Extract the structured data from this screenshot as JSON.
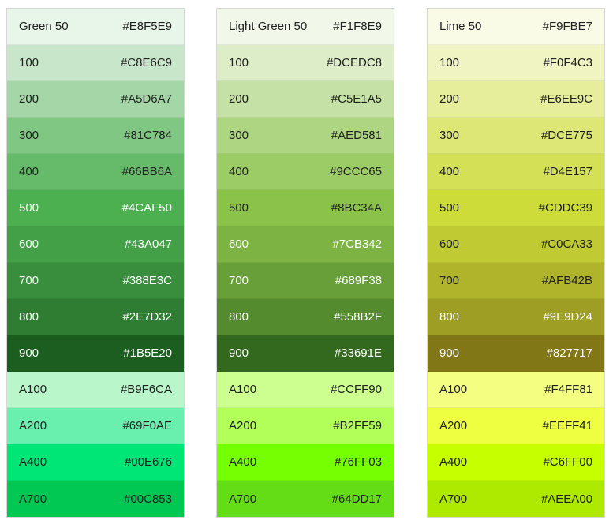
{
  "palettes": [
    {
      "header": "Green 50",
      "swatches": [
        {
          "shade": "Green 50",
          "hex": "#E8F5E9",
          "text": "#212121"
        },
        {
          "shade": "100",
          "hex": "#C8E6C9",
          "text": "#212121"
        },
        {
          "shade": "200",
          "hex": "#A5D6A7",
          "text": "#212121"
        },
        {
          "shade": "300",
          "hex": "#81C784",
          "text": "#212121"
        },
        {
          "shade": "400",
          "hex": "#66BB6A",
          "text": "#212121"
        },
        {
          "shade": "500",
          "hex": "#4CAF50",
          "text": "#ffffff"
        },
        {
          "shade": "600",
          "hex": "#43A047",
          "text": "#ffffff"
        },
        {
          "shade": "700",
          "hex": "#388E3C",
          "text": "#ffffff"
        },
        {
          "shade": "800",
          "hex": "#2E7D32",
          "text": "#ffffff"
        },
        {
          "shade": "900",
          "hex": "#1B5E20",
          "text": "#ffffff"
        },
        {
          "shade": "A100",
          "hex": "#B9F6CA",
          "text": "#212121"
        },
        {
          "shade": "A200",
          "hex": "#69F0AE",
          "text": "#212121"
        },
        {
          "shade": "A400",
          "hex": "#00E676",
          "text": "#212121"
        },
        {
          "shade": "A700",
          "hex": "#00C853",
          "text": "#212121"
        }
      ]
    },
    {
      "header": "Light Green 50",
      "swatches": [
        {
          "shade": "Light Green 50",
          "hex": "#F1F8E9",
          "text": "#212121"
        },
        {
          "shade": "100",
          "hex": "#DCEDC8",
          "text": "#212121"
        },
        {
          "shade": "200",
          "hex": "#C5E1A5",
          "text": "#212121"
        },
        {
          "shade": "300",
          "hex": "#AED581",
          "text": "#212121"
        },
        {
          "shade": "400",
          "hex": "#9CCC65",
          "text": "#212121"
        },
        {
          "shade": "500",
          "hex": "#8BC34A",
          "text": "#212121"
        },
        {
          "shade": "600",
          "hex": "#7CB342",
          "text": "#ffffff"
        },
        {
          "shade": "700",
          "hex": "#689F38",
          "text": "#ffffff"
        },
        {
          "shade": "800",
          "hex": "#558B2F",
          "text": "#ffffff"
        },
        {
          "shade": "900",
          "hex": "#33691E",
          "text": "#ffffff"
        },
        {
          "shade": "A100",
          "hex": "#CCFF90",
          "text": "#212121"
        },
        {
          "shade": "A200",
          "hex": "#B2FF59",
          "text": "#212121"
        },
        {
          "shade": "A400",
          "hex": "#76FF03",
          "text": "#212121"
        },
        {
          "shade": "A700",
          "hex": "#64DD17",
          "text": "#212121"
        }
      ]
    },
    {
      "header": "Lime 50",
      "swatches": [
        {
          "shade": "Lime 50",
          "hex": "#F9FBE7",
          "text": "#212121"
        },
        {
          "shade": "100",
          "hex": "#F0F4C3",
          "text": "#212121"
        },
        {
          "shade": "200",
          "hex": "#E6EE9C",
          "text": "#212121"
        },
        {
          "shade": "300",
          "hex": "#DCE775",
          "text": "#212121"
        },
        {
          "shade": "400",
          "hex": "#D4E157",
          "text": "#212121"
        },
        {
          "shade": "500",
          "hex": "#CDDC39",
          "text": "#212121"
        },
        {
          "shade": "600",
          "hex": "#C0CA33",
          "text": "#212121"
        },
        {
          "shade": "700",
          "hex": "#AFB42B",
          "text": "#212121"
        },
        {
          "shade": "800",
          "hex": "#9E9D24",
          "text": "#ffffff"
        },
        {
          "shade": "900",
          "hex": "#827717",
          "text": "#ffffff"
        },
        {
          "shade": "A100",
          "hex": "#F4FF81",
          "text": "#212121"
        },
        {
          "shade": "A200",
          "hex": "#EEFF41",
          "text": "#212121"
        },
        {
          "shade": "A400",
          "hex": "#C6FF00",
          "text": "#212121"
        },
        {
          "shade": "A700",
          "hex": "#AEEA00",
          "text": "#212121"
        }
      ]
    }
  ]
}
